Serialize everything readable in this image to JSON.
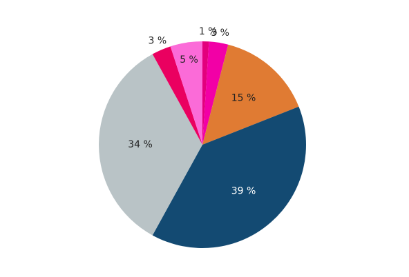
{
  "chart_data": {
    "type": "pie",
    "values": [
      1,
      3,
      15,
      39,
      34,
      3,
      5
    ],
    "value_labels": [
      "1 %",
      "3 %",
      "15 %",
      "39 %",
      "34 %",
      "3 %",
      "5 %"
    ],
    "colors": [
      "#e3007d",
      "#f200a6",
      "#e07b33",
      "#134a72",
      "#b9c3c6",
      "#ea0060",
      "#fb6bd8"
    ]
  }
}
